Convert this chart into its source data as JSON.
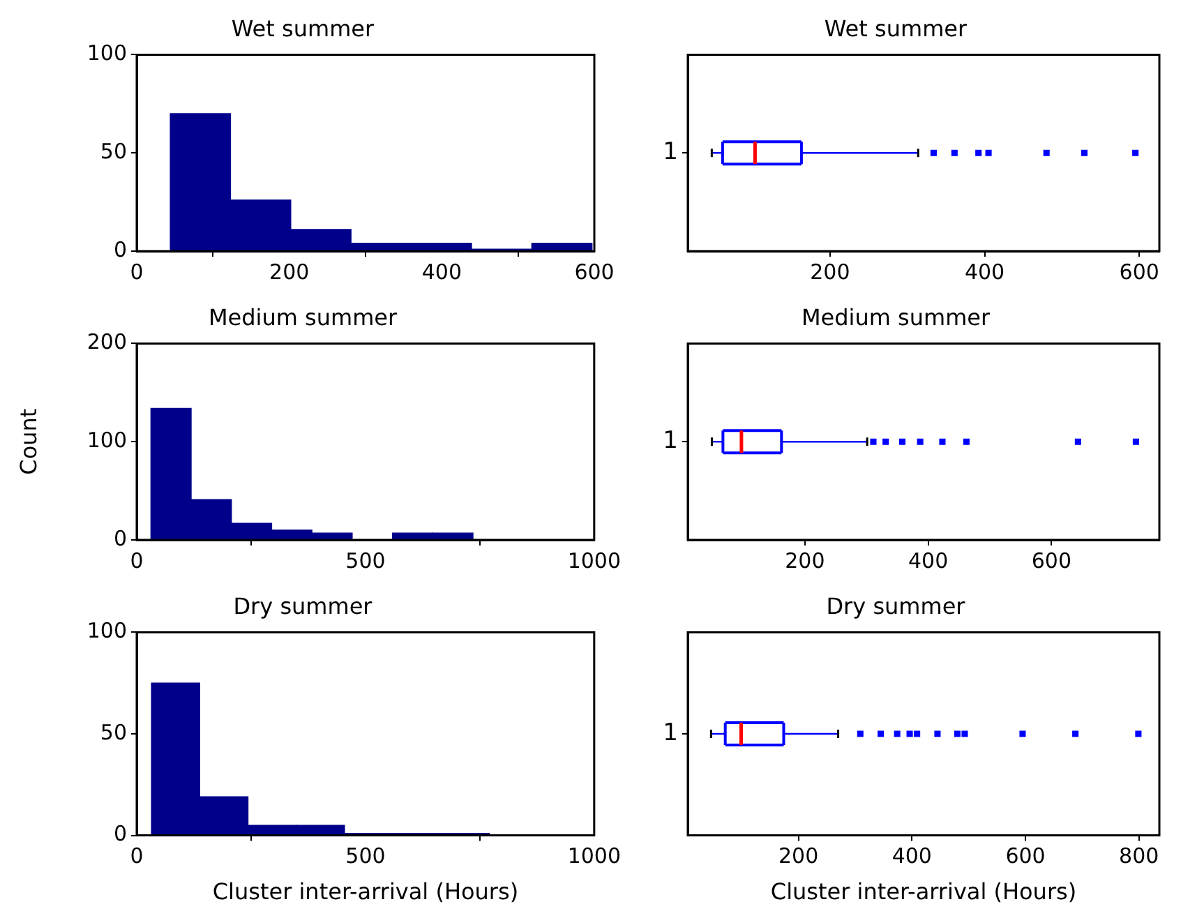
{
  "chart_data": [
    {
      "type": "histogram",
      "title": "Wet summer",
      "color": "#00008b",
      "bins": [
        44,
        123,
        202,
        281,
        360,
        439,
        518,
        597
      ],
      "values": [
        70,
        26,
        11,
        4,
        4,
        1,
        4
      ],
      "xlim": [
        0,
        600
      ],
      "xticks": [
        0,
        200,
        400,
        600
      ],
      "ylim": [
        0,
        100
      ],
      "yticks": [
        0,
        50,
        100
      ]
    },
    {
      "type": "box",
      "title": "Wet summer",
      "orientation": "horizontal",
      "color": "#0000ff",
      "marker": "square",
      "categories": [
        "1"
      ],
      "boxes": [
        {
          "low": 47,
          "q1": 61,
          "median": 103,
          "q3": 163,
          "high": 314,
          "outliers": [
            334,
            361,
            392,
            405,
            480,
            529,
            595
          ]
        }
      ],
      "xlim": [
        16,
        626
      ],
      "xticks": [
        200,
        400,
        600
      ]
    },
    {
      "type": "histogram",
      "title": "Medium summer",
      "ylabel": "Count",
      "color": "#00008b",
      "bins": [
        31,
        119,
        207,
        295,
        383,
        471,
        559,
        647,
        735
      ],
      "values": [
        134,
        41,
        17,
        10,
        7,
        0,
        7,
        7
      ],
      "xlim": [
        0,
        1000
      ],
      "xticks": [
        0,
        500,
        1000
      ],
      "ylim": [
        0,
        200
      ],
      "yticks": [
        0,
        100,
        200
      ]
    },
    {
      "type": "box",
      "title": "Medium summer",
      "orientation": "horizontal",
      "color": "#0000ff",
      "marker": "square",
      "categories": [
        "1"
      ],
      "boxes": [
        {
          "low": 49,
          "q1": 67,
          "median": 97,
          "q3": 162,
          "high": 301,
          "outliers": [
            311,
            331,
            358,
            387,
            423,
            462,
            643,
            737
          ]
        }
      ],
      "xlim": [
        10,
        775
      ],
      "xticks": [
        200,
        400,
        600
      ]
    },
    {
      "type": "histogram",
      "title": "Dry summer",
      "xlabel": "Cluster inter-arrival (Hours)",
      "color": "#00008b",
      "bins": [
        32,
        138,
        243,
        349,
        454,
        560,
        665,
        771
      ],
      "values": [
        75,
        19,
        5,
        5,
        1,
        1,
        1
      ],
      "xlim": [
        0,
        1000
      ],
      "xticks": [
        0,
        500,
        1000
      ],
      "ylim": [
        0,
        100
      ],
      "yticks": [
        0,
        50,
        100
      ]
    },
    {
      "type": "box",
      "title": "Dry summer",
      "xlabel": "Cluster inter-arrival (Hours)",
      "orientation": "horizontal",
      "color": "#0000ff",
      "marker": "square",
      "categories": [
        "1"
      ],
      "boxes": [
        {
          "low": 46,
          "q1": 71,
          "median": 99,
          "q3": 174,
          "high": 270,
          "outliers": [
            309,
            345,
            374,
            396,
            409,
            445,
            480,
            493,
            595,
            688,
            799
          ]
        }
      ],
      "xlim": [
        5,
        836
      ],
      "xticks": [
        200,
        400,
        600,
        800
      ]
    }
  ]
}
